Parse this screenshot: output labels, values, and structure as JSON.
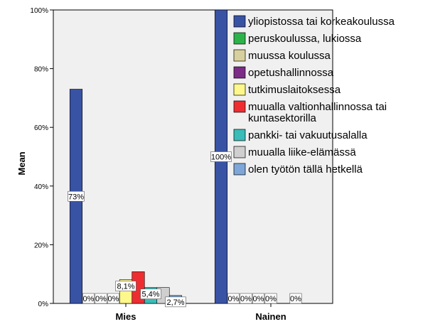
{
  "chart_data": {
    "type": "bar",
    "title": "",
    "xlabel": "",
    "ylabel": "Mean",
    "ylim": [
      0,
      1
    ],
    "yticks": [
      {
        "value": 0,
        "label": "0%"
      },
      {
        "value": 0.2,
        "label": "20%"
      },
      {
        "value": 0.4,
        "label": "40%"
      },
      {
        "value": 0.6,
        "label": "60%"
      },
      {
        "value": 0.8,
        "label": "80%"
      },
      {
        "value": 1.0,
        "label": "100%"
      }
    ],
    "categories": [
      "Mies",
      "Nainen"
    ],
    "series": [
      {
        "name": "yliopistossa tai korkeakoulussa",
        "color": "#3953a4",
        "values": [
          0.73,
          1.0
        ],
        "labels": [
          "73%",
          "100%"
        ]
      },
      {
        "name": "peruskoulussa, lukiossa",
        "color": "#2bb34a",
        "values": [
          0,
          0
        ],
        "labels": [
          "0%",
          "0%"
        ]
      },
      {
        "name": "muussa koulussa",
        "color": "#d8cf9e",
        "values": [
          0,
          0
        ],
        "labels": [
          "0%",
          "0%"
        ]
      },
      {
        "name": "opetushallinnossa",
        "color": "#7b2c86",
        "values": [
          0,
          0
        ],
        "labels": [
          "0%",
          "0%"
        ]
      },
      {
        "name": "tutkimuslaitoksessa",
        "color": "#fdf78c",
        "values": [
          0.081,
          0
        ],
        "labels": [
          "8,1%",
          "0%"
        ]
      },
      {
        "name": "muualla valtionhallinnossa tai kuntasektorilla",
        "color": "#ee2d31",
        "values": [
          0.108,
          0
        ],
        "labels": [
          "",
          ""
        ]
      },
      {
        "name": "pankki- tai vakuutusalalla",
        "color": "#3abcb8",
        "values": [
          0.054,
          0
        ],
        "labels": [
          "5,4%",
          "0%"
        ]
      },
      {
        "name": "muualla liike-elämässä",
        "color": "#cfcfcf",
        "values": [
          0.054,
          0
        ],
        "labels": [
          "",
          ""
        ]
      },
      {
        "name": "olen työtön tällä hetkellä",
        "color": "#7ea6d8",
        "values": [
          0.027,
          0
        ],
        "labels": [
          "2,7%",
          ""
        ]
      }
    ],
    "grid": false,
    "legend": "top-right"
  }
}
